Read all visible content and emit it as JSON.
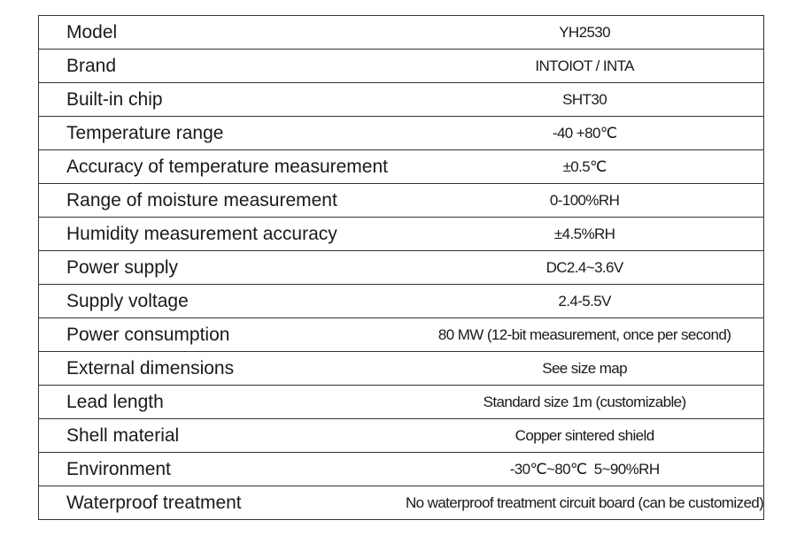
{
  "table": {
    "rows": [
      [
        "Model",
        "YH2530"
      ],
      [
        "Brand",
        "INTOIOT / INTA"
      ],
      [
        "Built-in chip",
        "SHT30"
      ],
      [
        "Temperature range",
        "-40 +80℃"
      ],
      [
        "Accuracy of temperature measurement",
        "±0.5℃"
      ],
      [
        "Range of moisture measurement",
        "0-100%RH"
      ],
      [
        "Humidity measurement accuracy",
        "±4.5%RH"
      ],
      [
        "Power supply",
        "DC2.4~3.6V"
      ],
      [
        "Supply voltage",
        "2.4-5.5V"
      ],
      [
        "Power consumption",
        "80 MW (12-bit measurement, once per second)"
      ],
      [
        "External dimensions",
        "See size map"
      ],
      [
        "Lead length",
        "Standard size 1m (customizable)"
      ],
      [
        "Shell material",
        "Copper sintered shield"
      ],
      [
        "Environment",
        "-30℃~80℃  5~90%RH"
      ],
      [
        "Waterproof treatment",
        "No waterproof treatment circuit board (can be customized)"
      ]
    ]
  }
}
